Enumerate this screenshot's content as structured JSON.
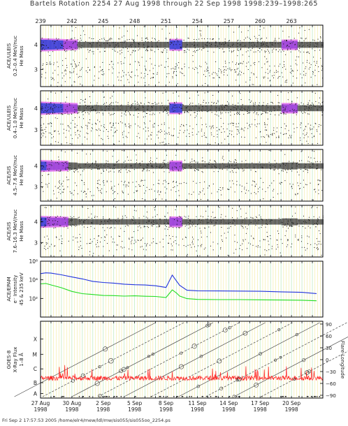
{
  "title": "Bartels Rotation 2254     27 Aug 1998 through 22 Sep 1998     1998:239–1998:265",
  "footer": "Fri Sep  2 17:57:53 2005    /home/elr4/mew/ldl/mw/sis055/sis055oo_2254.ps",
  "colors": {
    "frame": "#000000",
    "grid_yellow": "#f0e78c",
    "grid_green": "#b9e8b9",
    "speckle": "#111111",
    "band_core": "#3b3bd6",
    "band_mid": "#9b3bd8",
    "band_outer": "#e070f0",
    "epam_low": "#2233dd",
    "epam_high": "#22dd22",
    "xray": "#ff2222"
  },
  "chart_data": [
    {
      "type": "scatter",
      "panel": "ACE/ULEIS 0.2-0.4 MeV/nuc",
      "ylabel": [
        "ACE/ULEIS",
        "0.2–0.4 MeV/nuc",
        "He Mass"
      ],
      "yticks": [
        "3",
        "4"
      ],
      "ylim": [
        2.3,
        4.8
      ],
      "band_mass": 4,
      "grid": true
    },
    {
      "type": "scatter",
      "panel": "ACE/ULEIS 0.4-1.0 MeV/nuc",
      "ylabel": [
        "ACE/ULEIS",
        "0.4–1.0 MeV/nuc",
        "He Mass"
      ],
      "yticks": [
        "3",
        "4"
      ],
      "ylim": [
        2.3,
        4.8
      ],
      "band_mass": 4,
      "grid": true
    },
    {
      "type": "scatter",
      "panel": "ACE/SIS 4.5-7.6 MeV/nuc",
      "ylabel": [
        "ACE/SIS",
        "4.5–7.6 MeV/nuc",
        "He Mass"
      ],
      "yticks": [
        "3",
        "4"
      ],
      "ylim": [
        2.3,
        4.8
      ],
      "band_mass": 4,
      "grid": true
    },
    {
      "type": "scatter",
      "panel": "ACE/SIS 7.6-16.3 MeV/nuc",
      "ylabel": [
        "ACE/SIS",
        "7.6–16.3 MeV/nuc",
        "He Mass"
      ],
      "yticks": [
        "3",
        "4"
      ],
      "ylim": [
        2.3,
        4.8
      ],
      "band_mass": 4,
      "grid": true
    },
    {
      "type": "line",
      "panel": "ACE/EPAM electron intensity",
      "ylabel": [
        "ACE/EPAM",
        "e⁻ Intensity",
        "45 & 235 keV"
      ],
      "yscale": "log",
      "yticks": [
        "10²",
        "10⁴",
        "10⁶"
      ],
      "ylim": [
        1,
        1000000
      ],
      "series": [
        {
          "color_key": "epam_low",
          "x": [
            239,
            239.5,
            240,
            241,
            242,
            243,
            244,
            245,
            246,
            247,
            248,
            249,
            250,
            251,
            251.6,
            252,
            252.3,
            253,
            254,
            256,
            258,
            260,
            262,
            264,
            265.4
          ],
          "values": [
            45000,
            60000,
            52000,
            35000,
            20000,
            12000,
            7000,
            5000,
            4500,
            3500,
            3000,
            2800,
            2400,
            1500,
            30000,
            8000,
            2500,
            800,
            650,
            600,
            600,
            550,
            500,
            450,
            350
          ]
        },
        {
          "color_key": "epam_high",
          "x": [
            239,
            239.5,
            240,
            241,
            242,
            243,
            244,
            245,
            246,
            247,
            248,
            249,
            250,
            251,
            251.6,
            252,
            252.3,
            253,
            254,
            256,
            258,
            260,
            262,
            264,
            265.4
          ],
          "values": [
            3500,
            4000,
            3000,
            1400,
            600,
            350,
            250,
            220,
            200,
            190,
            180,
            170,
            160,
            120,
            800,
            400,
            180,
            90,
            80,
            75,
            70,
            70,
            65,
            60,
            55
          ]
        }
      ],
      "grid": true
    },
    {
      "type": "line",
      "panel": "GOES-8 X-Ray Flux",
      "ylabel": [
        "GOES-8",
        "X-Ray Flux",
        "1–8 Å"
      ],
      "yticks_left": [
        "A",
        "B",
        "C",
        "M",
        "X"
      ],
      "y2label": "Flare Longitude",
      "y2ticks": [
        "−90",
        "−60",
        "−30",
        "0",
        "30",
        "60",
        "90"
      ],
      "grid": true
    }
  ],
  "x_axis": {
    "top_ticks": [
      "239",
      "242",
      "245",
      "248",
      "251",
      "254",
      "257",
      "260",
      "263"
    ],
    "top_tick_days": [
      239,
      242,
      245,
      248,
      251,
      254,
      257,
      260,
      263
    ],
    "date_labels": [
      {
        "day": 239,
        "line1": "27 Aug",
        "line2": "1998"
      },
      {
        "day": 242,
        "line1": "30 Aug",
        "line2": "1998"
      },
      {
        "day": 245,
        "line1": "2 Sep",
        "line2": "1998"
      },
      {
        "day": 248,
        "line1": "5 Sep",
        "line2": "1998"
      },
      {
        "day": 251,
        "line1": "8 Sep",
        "line2": "1998"
      },
      {
        "day": 254,
        "line1": "11 Sep",
        "line2": "1998"
      },
      {
        "day": 257,
        "line1": "14 Sep",
        "line2": "1998"
      },
      {
        "day": 260,
        "line1": "17 Sep",
        "line2": "1998"
      },
      {
        "day": 263,
        "line1": "20 Sep",
        "line2": "1998"
      }
    ],
    "xlim": [
      239,
      266
    ]
  }
}
